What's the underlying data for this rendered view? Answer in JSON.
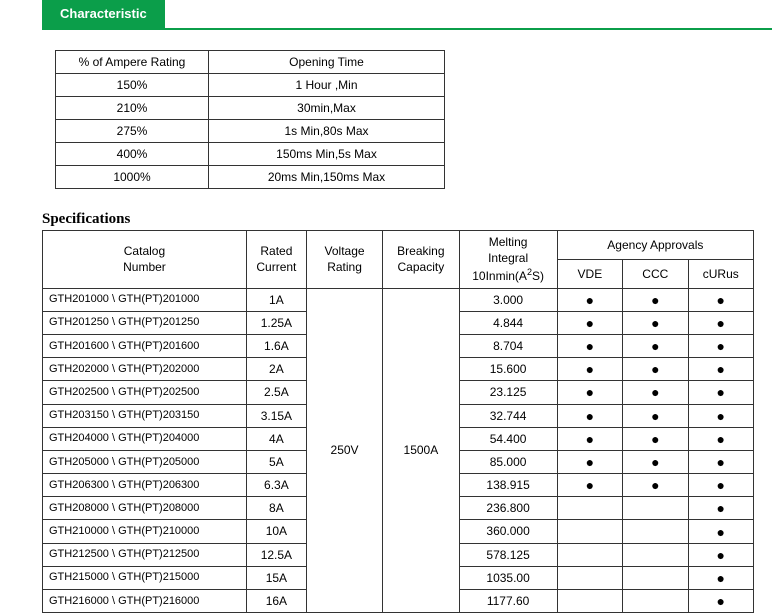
{
  "tab_label": "Characteristic",
  "char_headers": [
    "% of Ampere Rating",
    "Opening Time"
  ],
  "char_rows": [
    [
      "150%",
      "1 Hour ,Min"
    ],
    [
      "210%",
      "30min,Max"
    ],
    [
      "275%",
      "1s Min,80s Max"
    ],
    [
      "400%",
      "150ms Min,5s Max"
    ],
    [
      "1000%",
      "20ms Min,150ms Max"
    ]
  ],
  "spec_title": "Specifications",
  "spec_headers": {
    "catalog": "Catalog\nNumber",
    "rated": "Rated\nCurrent",
    "voltage": "Voltage\nRating",
    "breaking": "Breaking\nCapacity",
    "melting_l1": "Melting",
    "melting_l2": "Integral",
    "melting_l3a": "10Inmin(A",
    "melting_l3b": "2",
    "melting_l3c": "S)",
    "agency": "Agency Approvals",
    "vde": "VDE",
    "ccc": "CCC",
    "curus": "cURus"
  },
  "voltage_value": "250V",
  "breaking_value": "1500A",
  "colors": {
    "tab_bg": "#0b9e4a",
    "tab_text": "#ffffff",
    "border": "#333333"
  },
  "spec_rows": [
    {
      "catalog": "GTH201000 \\ GTH(PT)201000",
      "current": "1A",
      "melt": "3.000",
      "vde": true,
      "ccc": true,
      "curus": true
    },
    {
      "catalog": "GTH201250 \\ GTH(PT)201250",
      "current": "1.25A",
      "melt": "4.844",
      "vde": true,
      "ccc": true,
      "curus": true
    },
    {
      "catalog": "GTH201600 \\ GTH(PT)201600",
      "current": "1.6A",
      "melt": "8.704",
      "vde": true,
      "ccc": true,
      "curus": true
    },
    {
      "catalog": "GTH202000 \\ GTH(PT)202000",
      "current": "2A",
      "melt": "15.600",
      "vde": true,
      "ccc": true,
      "curus": true
    },
    {
      "catalog": "GTH202500 \\ GTH(PT)202500",
      "current": "2.5A",
      "melt": "23.125",
      "vde": true,
      "ccc": true,
      "curus": true
    },
    {
      "catalog": "GTH203150 \\ GTH(PT)203150",
      "current": "3.15A",
      "melt": "32.744",
      "vde": true,
      "ccc": true,
      "curus": true
    },
    {
      "catalog": "GTH204000 \\ GTH(PT)204000",
      "current": "4A",
      "melt": "54.400",
      "vde": true,
      "ccc": true,
      "curus": true
    },
    {
      "catalog": "GTH205000 \\ GTH(PT)205000",
      "current": "5A",
      "melt": "85.000",
      "vde": true,
      "ccc": true,
      "curus": true
    },
    {
      "catalog": "GTH206300 \\ GTH(PT)206300",
      "current": "6.3A",
      "melt": "138.915",
      "vde": true,
      "ccc": true,
      "curus": true
    },
    {
      "catalog": "GTH208000 \\ GTH(PT)208000",
      "current": "8A",
      "melt": "236.800",
      "vde": false,
      "ccc": false,
      "curus": true
    },
    {
      "catalog": "GTH210000 \\ GTH(PT)210000",
      "current": "10A",
      "melt": "360.000",
      "vde": false,
      "ccc": false,
      "curus": true
    },
    {
      "catalog": "GTH212500 \\ GTH(PT)212500",
      "current": "12.5A",
      "melt": "578.125",
      "vde": false,
      "ccc": false,
      "curus": true
    },
    {
      "catalog": "GTH215000 \\ GTH(PT)215000",
      "current": "15A",
      "melt": "1035.00",
      "vde": false,
      "ccc": false,
      "curus": true
    },
    {
      "catalog": "GTH216000 \\ GTH(PT)216000",
      "current": "16A",
      "melt": "1177.60",
      "vde": false,
      "ccc": false,
      "curus": true
    }
  ]
}
